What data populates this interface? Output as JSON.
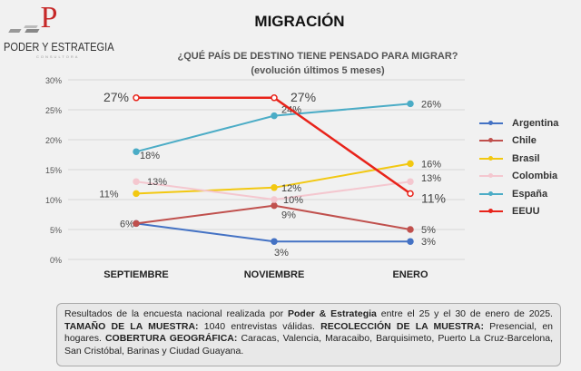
{
  "logo": {
    "letter": "P",
    "name": "PODER Y ESTRATEGIA",
    "sub": "CONSULTORA"
  },
  "title": "MIGRACIÓN",
  "question": "¿QUÉ PAÍS DE DESTINO TIENE PENSADO PARA MIGRAR?",
  "subtitle": "(evolución últimos 5 meses)",
  "chart_data": {
    "type": "line",
    "categories": [
      "SEPTIEMBRE",
      "NOVIEMBRE",
      "ENERO"
    ],
    "ylim": [
      0,
      30
    ],
    "yticks": [
      "0%",
      "5%",
      "10%",
      "15%",
      "20%",
      "25%",
      "30%"
    ],
    "grid": true,
    "legend": "right",
    "series": [
      {
        "name": "Argentina",
        "values": [
          6,
          3,
          3
        ],
        "color": "#4472c4",
        "labels": [
          "6%",
          "3%",
          "3%"
        ]
      },
      {
        "name": "Chile",
        "values": [
          6,
          9,
          5
        ],
        "color": "#c0504d",
        "labels": [
          "",
          "9%",
          "5%"
        ]
      },
      {
        "name": "Brasil",
        "values": [
          11,
          12,
          16
        ],
        "color": "#f2c811",
        "labels": [
          "11%",
          "12%",
          "16%"
        ]
      },
      {
        "name": "Colombia",
        "values": [
          13,
          10,
          13
        ],
        "color": "#f4c7cf",
        "labels": [
          "13%",
          "10%",
          "13%"
        ]
      },
      {
        "name": "España",
        "values": [
          18,
          24,
          26
        ],
        "color": "#4bacc6",
        "labels": [
          "18%",
          "24%",
          "26%"
        ]
      },
      {
        "name": "EEUU",
        "values": [
          27,
          27,
          11
        ],
        "color": "#e8231a",
        "labels": [
          "27%",
          "27%",
          "11%"
        ]
      }
    ]
  },
  "note": {
    "p1": "Resultados de la encuesta nacional realizada por ",
    "b1": "Poder & Estrategia",
    "p2": " entre el 25 y el 30 de enero de 2025. ",
    "b2": "TAMAÑO DE LA MUESTRA:",
    "p3": " 1040  entrevistas válidas. ",
    "b3": "RECOLECCIÓN DE LA MUESTRA:",
    "p4": " Presencial, en hogares. ",
    "b4": "COBERTURA GEOGRÁFICA:",
    "p5": " Caracas, Valencia, Maracaibo, Barquisimeto, Puerto La Cruz-Barcelona, San Cristóbal, Barinas y Ciudad Guayana."
  }
}
